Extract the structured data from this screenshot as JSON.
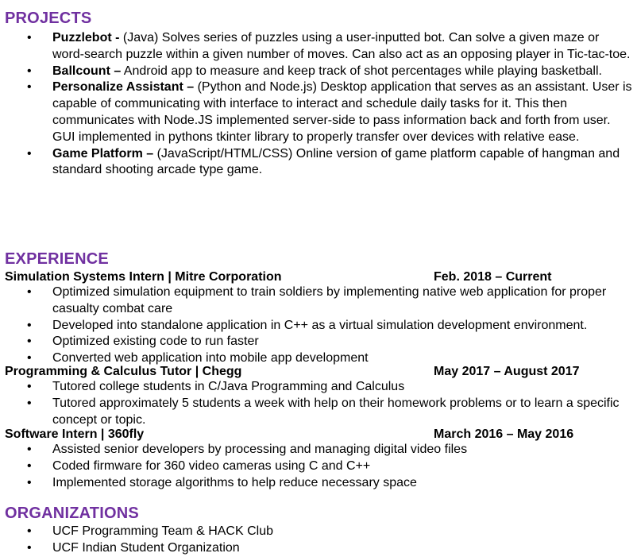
{
  "accent_color": "#7030a0",
  "projects": {
    "heading": "PROJECTS",
    "items": [
      {
        "name": "Puzzlebot -",
        "desc": " (Java) Solves series of puzzles using a user-inputted bot. Can solve a given maze or word-search puzzle within a given number of moves. Can also act as an opposing player in Tic-tac-toe."
      },
      {
        "name": "Ballcount –",
        "desc": " Android app to measure and keep track of shot percentages while playing basketball."
      },
      {
        "name": "Personalize Assistant –",
        "desc": " (Python and Node.js) Desktop application that serves as an assistant. User is capable of communicating with interface to interact and schedule daily tasks for it. This then communicates with Node.JS implemented server-side to pass information back and forth from user. GUI implemented in pythons tkinter library to properly transfer over devices with relative ease."
      },
      {
        "name": "Game Platform –",
        "desc": " (JavaScript/HTML/CSS) Online version of game platform capable of hangman and standard shooting arcade type game."
      }
    ]
  },
  "experience": {
    "heading": "EXPERIENCE",
    "jobs": [
      {
        "title": "Simulation Systems Intern | Mitre Corporation",
        "dates": "Feb. 2018 – Current",
        "bullets": [
          "Optimized simulation equipment to train soldiers by implementing native web application for proper casualty combat care",
          "Developed into standalone application in C++ as a virtual simulation development environment.",
          "Optimized existing code to run faster",
          "Converted web application into mobile app development"
        ]
      },
      {
        "title": "Programming & Calculus Tutor | Chegg",
        "dates": "May 2017 – August 2017",
        "bullets": [
          "Tutored college students in C/Java Programming and Calculus",
          "Tutored approximately 5 students a week with help on their homework problems or to learn a specific concept or topic."
        ]
      },
      {
        "title": "Software Intern | 360fly",
        "dates": "March 2016 – May 2016",
        "bullets": [
          "Assisted senior developers by processing and managing digital video files",
          "Coded firmware for 360 video cameras using C and C++",
          "Implemented storage algorithms to help reduce necessary space"
        ]
      }
    ]
  },
  "organizations": {
    "heading": "ORGANIZATIONS",
    "items": [
      "UCF Programming Team & HACK Club",
      "UCF Indian Student Organization"
    ]
  }
}
